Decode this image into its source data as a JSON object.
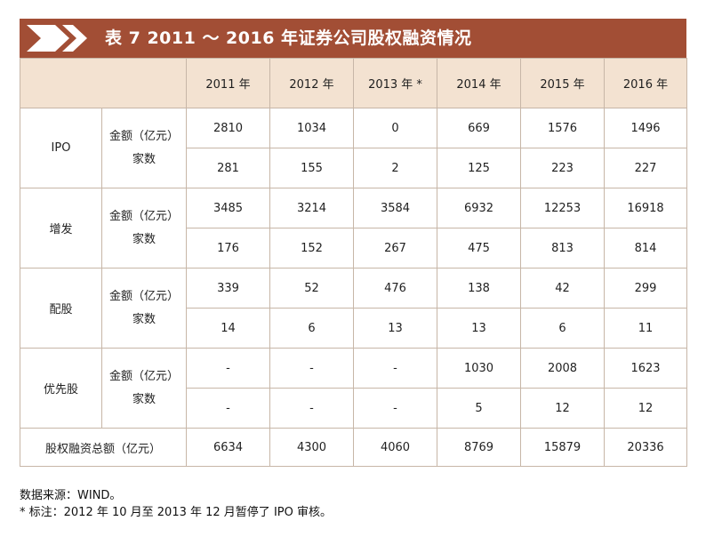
{
  "title": "表 7  2011 ～ 2016 年证券公司股权融资情况",
  "header": {
    "years": [
      "2011 年",
      "2012 年",
      "2013 年 *",
      "2014 年",
      "2015 年",
      "2016 年"
    ]
  },
  "labels": {
    "amount": "金额（亿元）",
    "count": "家数"
  },
  "rows": [
    {
      "category": "IPO",
      "amount": [
        "2810",
        "1034",
        "0",
        "669",
        "1576",
        "1496"
      ],
      "count": [
        "281",
        "155",
        "2",
        "125",
        "223",
        "227"
      ]
    },
    {
      "category": "增发",
      "amount": [
        "3485",
        "3214",
        "3584",
        "6932",
        "12253",
        "16918"
      ],
      "count": [
        "176",
        "152",
        "267",
        "475",
        "813",
        "814"
      ]
    },
    {
      "category": "配股",
      "amount": [
        "339",
        "52",
        "476",
        "138",
        "42",
        "299"
      ],
      "count": [
        "14",
        "6",
        "13",
        "13",
        "6",
        "11"
      ]
    },
    {
      "category": "优先股",
      "amount": [
        "-",
        "-",
        "-",
        "1030",
        "2008",
        "1623"
      ],
      "count": [
        "-",
        "-",
        "-",
        "5",
        "12",
        "12"
      ]
    }
  ],
  "total": {
    "label": "股权融资总额（亿元）",
    "values": [
      "6634",
      "4300",
      "4060",
      "8769",
      "15879",
      "20336"
    ]
  },
  "notes": {
    "source": "数据来源：WIND。",
    "footnote": "* 标注：2012 年 10 月至 2013 年 12 月暂停了 IPO 审核。"
  },
  "colors": {
    "title_bar": "#a24e35",
    "header_bg": "#f3e2d1",
    "border": "#c7b6a7"
  }
}
